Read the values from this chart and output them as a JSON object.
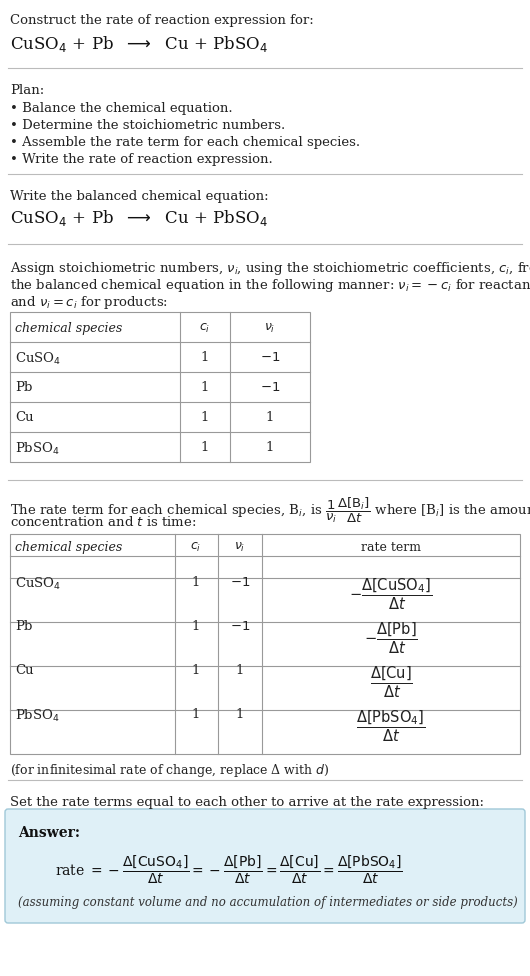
{
  "bg_color": "#ffffff",
  "text_color": "#000000",
  "title_line1": "Construct the rate of reaction expression for:",
  "title_eq": "CuSO$_4$ + Pb  $\\longrightarrow$  Cu + PbSO$_4$",
  "plan_header": "Plan:",
  "plan_items": [
    "• Balance the chemical equation.",
    "• Determine the stoichiometric numbers.",
    "• Assemble the rate term for each chemical species.",
    "• Write the rate of reaction expression."
  ],
  "balanced_header": "Write the balanced chemical equation:",
  "balanced_eq": "CuSO$_4$ + Pb  $\\longrightarrow$  Cu + PbSO$_4$",
  "stoich_intro1": "Assign stoichiometric numbers, $\\nu_i$, using the stoichiometric coefficients, $c_i$, from",
  "stoich_intro2": "the balanced chemical equation in the following manner: $\\nu_i = -c_i$ for reactants",
  "stoich_intro3": "and $\\nu_i = c_i$ for products:",
  "table1_headers": [
    "chemical species",
    "$c_i$",
    "$\\nu_i$"
  ],
  "table1_rows": [
    [
      "CuSO$_4$",
      "1",
      "$-1$"
    ],
    [
      "Pb",
      "1",
      "$-1$"
    ],
    [
      "Cu",
      "1",
      "1"
    ],
    [
      "PbSO$_4$",
      "1",
      "1"
    ]
  ],
  "rate_intro1": "The rate term for each chemical species, B$_i$, is $\\dfrac{1}{\\nu_i}\\dfrac{\\Delta[\\mathrm{B}_i]}{\\Delta t}$ where [B$_i$] is the amount",
  "rate_intro2": "concentration and $t$ is time:",
  "table2_headers": [
    "chemical species",
    "$c_i$",
    "$\\nu_i$",
    "rate term"
  ],
  "table2_rows": [
    [
      "CuSO$_4$",
      "1",
      "$-1$",
      "$-\\dfrac{\\Delta[\\mathrm{CuSO_4}]}{\\Delta t}$"
    ],
    [
      "Pb",
      "1",
      "$-1$",
      "$-\\dfrac{\\Delta[\\mathrm{Pb}]}{\\Delta t}$"
    ],
    [
      "Cu",
      "1",
      "1",
      "$\\dfrac{\\Delta[\\mathrm{Cu}]}{\\Delta t}$"
    ],
    [
      "PbSO$_4$",
      "1",
      "1",
      "$\\dfrac{\\Delta[\\mathrm{PbSO_4}]}{\\Delta t}$"
    ]
  ],
  "infinitesimal_note": "(for infinitesimal rate of change, replace Δ with $d$)",
  "set_equal_text": "Set the rate terms equal to each other to arrive at the rate expression:",
  "answer_label": "Answer:",
  "answer_eq": "rate $= -\\dfrac{\\Delta[\\mathrm{CuSO_4}]}{\\Delta t} = -\\dfrac{\\Delta[\\mathrm{Pb}]}{\\Delta t} = \\dfrac{\\Delta[\\mathrm{Cu}]}{\\Delta t} = \\dfrac{\\Delta[\\mathrm{PbSO_4}]}{\\Delta t}$",
  "answer_note": "(assuming constant volume and no accumulation of intermediates or side products)",
  "answer_box_color": "#dff0f7",
  "answer_box_border": "#a0c8d8",
  "divider_color": "#bbbbbb",
  "table_border_color": "#999999",
  "font_family": "DejaVu Serif"
}
